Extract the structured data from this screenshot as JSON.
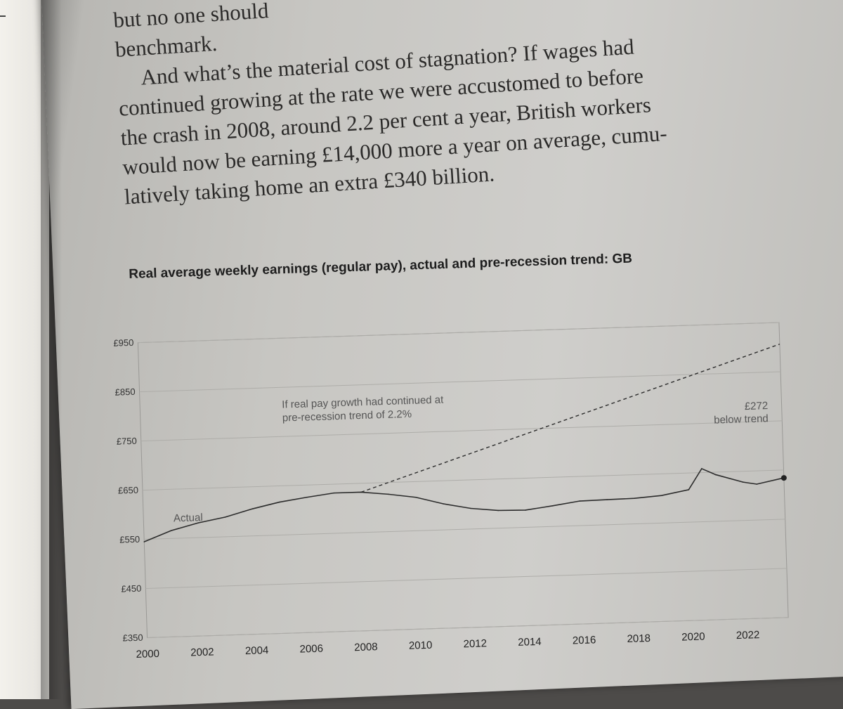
{
  "prose": {
    "lines": [
      "but no one should",
      "benchmark.",
      "And what’s the material cost of stagnation? If wages had",
      "continued growing at the rate we were accustomed to before",
      "the crash in 2008, around 2.2 per cent a year, British workers",
      "would now be earning £14,000 more a year on average, cumu-",
      "latively taking home an extra £340 billion."
    ]
  },
  "chart_data": {
    "type": "line",
    "title": "Real average weekly earnings (regular pay), actual and pre-recession trend: GB",
    "y_ticks": [
      "£950",
      "£850",
      "£750",
      "£650",
      "£550",
      "£450",
      "£350"
    ],
    "x_ticks": [
      "2000",
      "2002",
      "2004",
      "2006",
      "2008",
      "2010",
      "2012",
      "2014",
      "2016",
      "2018",
      "2020",
      "2022"
    ],
    "ylim": [
      350,
      950
    ],
    "xlim": [
      2000,
      2023.5
    ],
    "series": [
      {
        "name": "Actual",
        "style": "solid",
        "x": [
          2000,
          2001,
          2002,
          2003,
          2004,
          2005,
          2006,
          2007,
          2008,
          2009,
          2010,
          2011,
          2012,
          2013,
          2014,
          2015,
          2016,
          2017,
          2018,
          2019,
          2020,
          2020.5,
          2021,
          2022,
          2022.5,
          2023.5
        ],
        "y": [
          545,
          566,
          580,
          590,
          605,
          617,
          625,
          632,
          632,
          626,
          618,
          603,
          592,
          586,
          585,
          592,
          600,
          601,
          602,
          606,
          616,
          658,
          645,
          628,
          623,
          634
        ]
      },
      {
        "name": "If real pay growth had continued at pre-recession trend of 2.2%",
        "style": "dashed",
        "x": [
          2008,
          2023.5
        ],
        "y": [
          632,
          906
        ]
      }
    ],
    "annotations": {
      "actual_label": "Actual",
      "trend_label_line1": "If real pay growth had continued at",
      "trend_label_line2": "pre-recession trend of 2.2%",
      "gap_label_line1": "£272",
      "gap_label_line2": "below trend"
    }
  }
}
